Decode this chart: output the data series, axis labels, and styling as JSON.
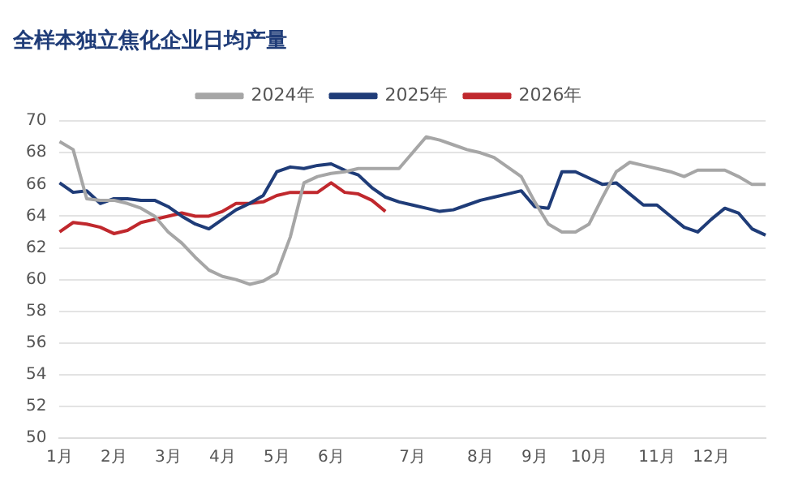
{
  "chart_data": {
    "type": "line",
    "title": "全样本独立焦化企业日均产量",
    "categories": [
      "1月",
      null,
      null,
      null,
      "2月",
      null,
      null,
      null,
      "3月",
      null,
      null,
      null,
      "4月",
      null,
      null,
      null,
      "5月",
      null,
      null,
      null,
      "6月",
      null,
      null,
      null,
      null,
      null,
      "7月",
      null,
      null,
      null,
      null,
      "8月",
      null,
      null,
      null,
      "9月",
      null,
      null,
      null,
      "10月",
      null,
      null,
      null,
      null,
      "11月",
      null,
      null,
      null,
      "12月",
      null,
      null,
      null,
      null
    ],
    "series": [
      {
        "name": "2024年",
        "color": "#a6a6a6",
        "values": [
          68.7,
          68.2,
          65.1,
          65.0,
          65.0,
          64.8,
          64.5,
          64.0,
          63.0,
          62.3,
          61.4,
          60.6,
          60.2,
          60.0,
          59.7,
          59.9,
          60.4,
          62.7,
          66.1,
          66.5,
          66.7,
          66.8,
          67.0,
          67.0,
          67.0,
          67.0,
          68.0,
          69.0,
          68.8,
          68.5,
          68.2,
          68.0,
          67.7,
          67.1,
          66.5,
          64.9,
          63.5,
          63.0,
          63.0,
          63.5,
          65.2,
          66.8,
          67.4,
          67.2,
          67.0,
          66.8,
          66.5,
          66.9,
          66.9,
          66.9,
          66.5,
          66.0,
          66.0
        ]
      },
      {
        "name": "2025年",
        "color": "#1f3c78",
        "values": [
          66.1,
          65.5,
          65.6,
          64.8,
          65.1,
          65.1,
          65.0,
          65.0,
          64.6,
          64.0,
          63.5,
          63.2,
          63.8,
          64.4,
          64.8,
          65.3,
          66.8,
          67.1,
          67.0,
          67.2,
          67.3,
          66.9,
          66.6,
          65.8,
          65.2,
          64.9,
          64.7,
          64.5,
          64.3,
          64.4,
          64.7,
          65.0,
          65.2,
          65.4,
          65.6,
          64.6,
          64.5,
          66.8,
          66.8,
          66.4,
          66.0,
          66.1,
          65.4,
          64.7,
          64.7,
          64.0,
          63.3,
          63.0,
          63.8,
          64.5,
          64.2,
          63.2,
          62.8
        ]
      },
      {
        "name": "2026年",
        "color": "#c0282d",
        "values": [
          63.0,
          63.6,
          63.5,
          63.3,
          62.9,
          63.1,
          63.6,
          63.8,
          64.0,
          64.2,
          64.0,
          64.0,
          64.3,
          64.8,
          64.8,
          64.9,
          65.3,
          65.5,
          65.5,
          65.5,
          66.1,
          65.5,
          65.4,
          65.0,
          64.3,
          null,
          null,
          null,
          null,
          null,
          null,
          null,
          null,
          null,
          null,
          null,
          null,
          null,
          null,
          null,
          null,
          null,
          null,
          null,
          null,
          null,
          null,
          null,
          null,
          null,
          null,
          null,
          null
        ]
      }
    ],
    "ylim": [
      50,
      70
    ],
    "yticks": [
      50,
      52,
      54,
      56,
      58,
      60,
      62,
      64,
      66,
      68,
      70
    ],
    "grid": "y",
    "legend": "top",
    "marker": "none",
    "line_style": "solid"
  }
}
